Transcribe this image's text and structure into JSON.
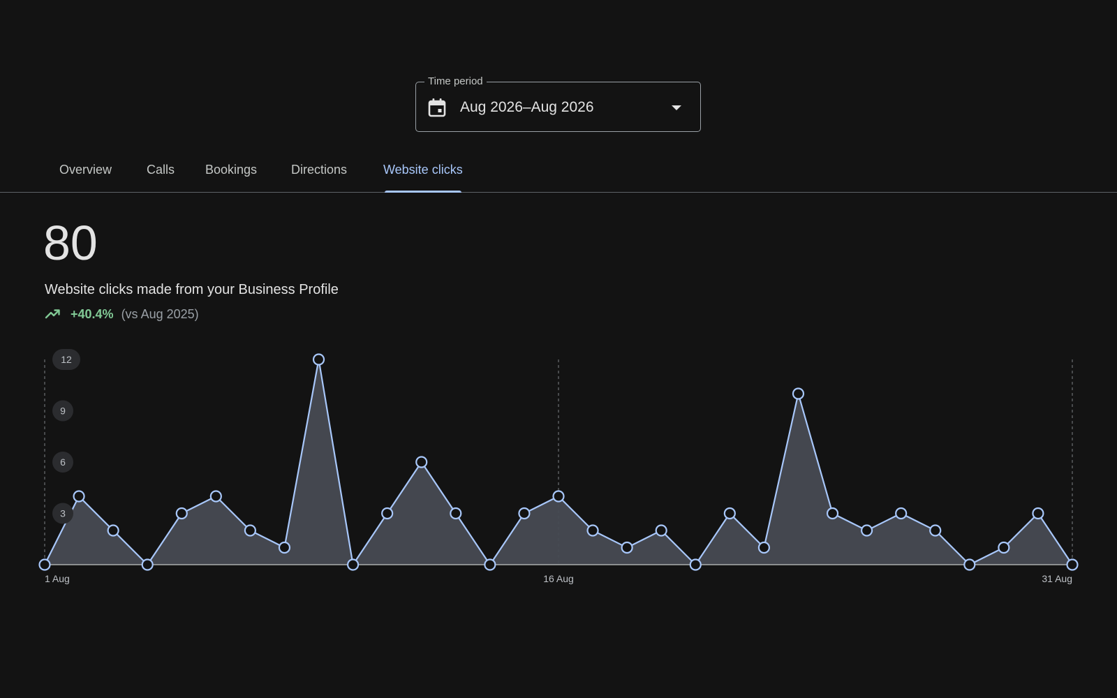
{
  "time_period": {
    "legend": "Time period",
    "value": "Aug 2026–Aug 2026"
  },
  "tabs": [
    {
      "label": "Overview",
      "active": false
    },
    {
      "label": "Calls",
      "active": false
    },
    {
      "label": "Bookings",
      "active": false
    },
    {
      "label": "Directions",
      "active": false
    },
    {
      "label": "Website clicks",
      "active": true
    }
  ],
  "summary": {
    "total": "80",
    "description": "Website clicks made from your Business Profile",
    "change": "+40.4%",
    "comparison": "(vs Aug 2025)"
  },
  "colors": {
    "background": "#131313",
    "accent": "#a8c7fa",
    "positive": "#81c995",
    "area_fill": "#474a52"
  },
  "icons": {
    "period": "calendar-icon",
    "dropdown": "arrow-drop-down-icon",
    "trend": "trending-up-icon"
  },
  "chart_data": {
    "type": "area",
    "x": [
      "1 Aug",
      "2 Aug",
      "3 Aug",
      "4 Aug",
      "5 Aug",
      "6 Aug",
      "7 Aug",
      "8 Aug",
      "9 Aug",
      "10 Aug",
      "11 Aug",
      "12 Aug",
      "13 Aug",
      "14 Aug",
      "15 Aug",
      "16 Aug",
      "17 Aug",
      "18 Aug",
      "19 Aug",
      "20 Aug",
      "21 Aug",
      "22 Aug",
      "23 Aug",
      "24 Aug",
      "25 Aug",
      "26 Aug",
      "27 Aug",
      "28 Aug",
      "29 Aug",
      "30 Aug",
      "31 Aug"
    ],
    "values": [
      0,
      4,
      2,
      0,
      3,
      4,
      2,
      1,
      12,
      0,
      3,
      6,
      3,
      0,
      3,
      4,
      2,
      1,
      2,
      0,
      3,
      1,
      10,
      3,
      2,
      3,
      2,
      0,
      1,
      3,
      0
    ],
    "x_tick_labels": [
      "1 Aug",
      "16 Aug",
      "31 Aug"
    ],
    "y_tick_labels": [
      "3",
      "6",
      "9",
      "12"
    ],
    "ylim": [
      0,
      12
    ],
    "grid": "vertical dashed at 1 Aug, 16 Aug, 31 Aug",
    "markers": "circle"
  }
}
